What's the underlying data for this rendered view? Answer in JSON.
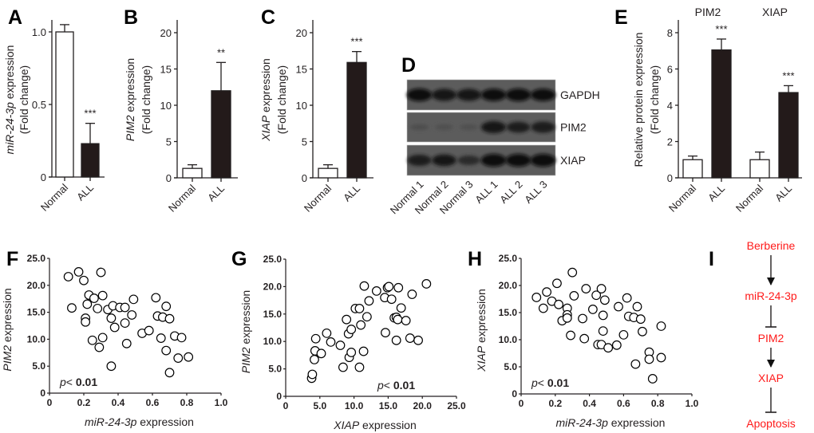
{
  "colors": {
    "bar_normal": "#ffffff",
    "bar_all": "#231a1a",
    "pathway_text": "#ff1a1a",
    "ink": "#231f20"
  },
  "chart_data": [
    {
      "panel": "A",
      "type": "bar",
      "ylabel_italic": "miR-24-3p",
      "ylabel_rest": " expression",
      "ylabel2": "(Fold change)",
      "yticks": [
        "0",
        "0.5",
        "1.0"
      ],
      "ytick_values": [
        0,
        0.5,
        1.0
      ],
      "ylim": [
        0,
        1.1
      ],
      "categories": [
        "Normal",
        "ALL"
      ],
      "values": [
        1.0,
        0.23
      ],
      "errors": [
        0.05,
        0.14
      ],
      "significance": [
        "",
        "***"
      ]
    },
    {
      "panel": "B",
      "type": "bar",
      "ylabel_italic": "PIM2",
      "ylabel_rest": " expression",
      "ylabel2": "(Fold change)",
      "yticks": [
        "0",
        "5",
        "10",
        "15",
        "20"
      ],
      "ytick_values": [
        0,
        5,
        10,
        15,
        20
      ],
      "ylim": [
        0,
        22
      ],
      "categories": [
        "Normal",
        "ALL"
      ],
      "values": [
        1.3,
        12.0
      ],
      "errors": [
        0.5,
        3.9
      ],
      "significance": [
        "",
        "**"
      ]
    },
    {
      "panel": "C",
      "type": "bar",
      "ylabel_italic": "XIAP",
      "ylabel_rest": " expression",
      "ylabel2": "(Fold change)",
      "yticks": [
        "0",
        "5",
        "10",
        "15",
        "20"
      ],
      "ytick_values": [
        0,
        5,
        10,
        15,
        20
      ],
      "ylim": [
        0,
        22
      ],
      "categories": [
        "Normal",
        "ALL"
      ],
      "values": [
        1.3,
        15.9
      ],
      "errors": [
        0.5,
        1.5
      ],
      "significance": [
        "",
        "***"
      ]
    },
    {
      "panel": "E",
      "type": "bar",
      "ylabel_italic": "",
      "ylabel_rest": "Relative protein expression",
      "ylabel2": "(Fold change)",
      "yticks": [
        "0",
        "2",
        "4",
        "6",
        "8"
      ],
      "ytick_values": [
        0,
        2,
        4,
        6,
        8
      ],
      "ylim": [
        0,
        8.8
      ],
      "groups": [
        "PIM2",
        "XIAP"
      ],
      "categories": [
        "Normal",
        "ALL",
        "Normal",
        "ALL"
      ],
      "values": [
        1.0,
        7.05,
        1.0,
        4.7
      ],
      "errors": [
        0.2,
        0.6,
        0.42,
        0.38
      ],
      "significance": [
        "",
        "***",
        "",
        "***"
      ]
    },
    {
      "panel": "F",
      "type": "scatter",
      "xlabel_italic": "miR-24-3p",
      "xlabel_rest": " expression",
      "ylabel_italic": "PIM2",
      "ylabel_rest": " expression",
      "xticks": [
        "0",
        "0.2",
        "0.4",
        "0.6",
        "0.8",
        "1.0"
      ],
      "xtick_values": [
        0,
        0.2,
        0.4,
        0.6,
        0.8,
        1.0
      ],
      "xlim": [
        0,
        1.0
      ],
      "yticks": [
        "0",
        "5.0",
        "10.0",
        "15.0",
        "20.0",
        "25.0"
      ],
      "ytick_values": [
        0,
        5,
        10,
        15,
        20,
        25
      ],
      "ylim": [
        0,
        25
      ],
      "p_prefix": "p",
      "p_op": "< ",
      "p_value": "0.01",
      "p_position": "bottom-left",
      "points": [
        [
          0.11,
          21.6
        ],
        [
          0.17,
          22.5
        ],
        [
          0.2,
          20.9
        ],
        [
          0.3,
          22.4
        ],
        [
          0.13,
          15.8
        ],
        [
          0.23,
          18.2
        ],
        [
          0.26,
          17.6
        ],
        [
          0.31,
          18.1
        ],
        [
          0.22,
          16.5
        ],
        [
          0.28,
          15.7
        ],
        [
          0.34,
          15.5
        ],
        [
          0.37,
          16.2
        ],
        [
          0.41,
          15.9
        ],
        [
          0.44,
          15.9
        ],
        [
          0.49,
          17.4
        ],
        [
          0.21,
          13.9
        ],
        [
          0.21,
          13.2
        ],
        [
          0.36,
          13.9
        ],
        [
          0.38,
          12.2
        ],
        [
          0.44,
          13.0
        ],
        [
          0.48,
          14.5
        ],
        [
          0.25,
          9.8
        ],
        [
          0.29,
          8.5
        ],
        [
          0.31,
          10.3
        ],
        [
          0.36,
          5.0
        ],
        [
          0.45,
          9.2
        ],
        [
          0.54,
          11.1
        ],
        [
          0.58,
          11.6
        ],
        [
          0.62,
          17.7
        ],
        [
          0.63,
          14.3
        ],
        [
          0.66,
          14.1
        ],
        [
          0.68,
          16.1
        ],
        [
          0.7,
          13.8
        ],
        [
          0.65,
          10.2
        ],
        [
          0.68,
          7.9
        ],
        [
          0.73,
          10.6
        ],
        [
          0.77,
          10.3
        ],
        [
          0.75,
          6.5
        ],
        [
          0.81,
          6.7
        ],
        [
          0.7,
          3.8
        ]
      ]
    },
    {
      "panel": "G",
      "type": "scatter",
      "xlabel_italic": "XIAP",
      "xlabel_rest": " expression",
      "ylabel_italic": "PIM2",
      "ylabel_rest": " expression",
      "xticks": [
        "0",
        "5.0",
        "10.0",
        "15.0",
        "20.0",
        "25.0"
      ],
      "xtick_values": [
        0,
        5,
        10,
        15,
        20,
        25
      ],
      "xlim": [
        0,
        25
      ],
      "yticks": [
        "0",
        "5.0",
        "10.0",
        "15.0",
        "20.0",
        "25.0"
      ],
      "ytick_values": [
        0,
        5,
        10,
        15,
        20,
        25
      ],
      "ylim": [
        0,
        25
      ],
      "p_prefix": "p",
      "p_op": "< ",
      "p_value": "0.01",
      "p_position": "bottom-right",
      "points": [
        [
          3.8,
          3.3
        ],
        [
          3.9,
          4.0
        ],
        [
          4.2,
          6.7
        ],
        [
          4.3,
          8.3
        ],
        [
          4.4,
          10.5
        ],
        [
          5.2,
          7.8
        ],
        [
          6.0,
          11.5
        ],
        [
          6.6,
          9.9
        ],
        [
          8.0,
          9.3
        ],
        [
          8.4,
          5.3
        ],
        [
          8.9,
          14.0
        ],
        [
          9.3,
          7.1
        ],
        [
          9.2,
          11.4
        ],
        [
          9.6,
          12.2
        ],
        [
          9.6,
          8.0
        ],
        [
          10.2,
          16.0
        ],
        [
          10.8,
          16.0
        ],
        [
          10.8,
          5.3
        ],
        [
          11.0,
          13.0
        ],
        [
          11.4,
          8.2
        ],
        [
          11.5,
          20.1
        ],
        [
          11.9,
          14.5
        ],
        [
          12.2,
          17.4
        ],
        [
          13.3,
          19.2
        ],
        [
          14.5,
          18.0
        ],
        [
          14.6,
          11.6
        ],
        [
          14.9,
          19.8
        ],
        [
          15.1,
          20.0
        ],
        [
          15.5,
          17.7
        ],
        [
          15.9,
          14.3
        ],
        [
          16.2,
          14.4
        ],
        [
          16.4,
          14.0
        ],
        [
          16.5,
          19.8
        ],
        [
          16.2,
          10.2
        ],
        [
          16.9,
          16.1
        ],
        [
          17.6,
          13.8
        ],
        [
          18.2,
          10.6
        ],
        [
          18.5,
          18.6
        ],
        [
          19.4,
          10.2
        ],
        [
          20.6,
          20.5
        ]
      ]
    },
    {
      "panel": "H",
      "type": "scatter",
      "xlabel_italic": "miR-24-3p",
      "xlabel_rest": " expression",
      "ylabel_italic": "XIAP",
      "ylabel_rest": " expression",
      "xticks": [
        "0",
        "0.2",
        "0.4",
        "0.6",
        "0.8",
        "1.0"
      ],
      "xtick_values": [
        0,
        0.2,
        0.4,
        0.6,
        0.8,
        1.0
      ],
      "xlim": [
        0,
        1.0
      ],
      "yticks": [
        "0",
        "5.0",
        "10.0",
        "15.0",
        "20.0",
        "25.0"
      ],
      "ytick_values": [
        0,
        5,
        10,
        15,
        20,
        25
      ],
      "ylim": [
        0,
        25
      ],
      "p_prefix": "p",
      "p_op": "< ",
      "p_value": "0.01",
      "p_position": "bottom-left",
      "points": [
        [
          0.09,
          17.8
        ],
        [
          0.13,
          15.8
        ],
        [
          0.15,
          18.8
        ],
        [
          0.18,
          17.1
        ],
        [
          0.21,
          20.4
        ],
        [
          0.22,
          16.5
        ],
        [
          0.24,
          13.5
        ],
        [
          0.27,
          15.8
        ],
        [
          0.27,
          14.6
        ],
        [
          0.27,
          14.0
        ],
        [
          0.29,
          10.8
        ],
        [
          0.3,
          22.4
        ],
        [
          0.31,
          18.1
        ],
        [
          0.36,
          13.9
        ],
        [
          0.37,
          10.2
        ],
        [
          0.38,
          19.4
        ],
        [
          0.42,
          15.6
        ],
        [
          0.44,
          18.2
        ],
        [
          0.45,
          9.1
        ],
        [
          0.47,
          9.1
        ],
        [
          0.47,
          19.4
        ],
        [
          0.48,
          14.5
        ],
        [
          0.48,
          11.6
        ],
        [
          0.49,
          17.3
        ],
        [
          0.51,
          8.5
        ],
        [
          0.56,
          9.0
        ],
        [
          0.57,
          16.1
        ],
        [
          0.6,
          10.9
        ],
        [
          0.62,
          17.7
        ],
        [
          0.63,
          14.3
        ],
        [
          0.66,
          14.1
        ],
        [
          0.68,
          16.1
        ],
        [
          0.67,
          5.5
        ],
        [
          0.7,
          13.8
        ],
        [
          0.71,
          11.5
        ],
        [
          0.75,
          7.7
        ],
        [
          0.75,
          6.4
        ],
        [
          0.77,
          2.8
        ],
        [
          0.82,
          12.5
        ],
        [
          0.82,
          6.7
        ]
      ]
    }
  ],
  "blot": {
    "panel": "D",
    "lanes": [
      "Normal 1",
      "Normal 2",
      "Normal 3",
      "ALL 1",
      "ALL 2",
      "ALL 3"
    ],
    "rows": [
      {
        "label": "GAPDH",
        "band_intensity": [
          1.0,
          0.9,
          0.9,
          0.95,
          1.0,
          0.95
        ]
      },
      {
        "label": "PIM2",
        "band_intensity": [
          0.15,
          0.12,
          0.12,
          0.9,
          0.75,
          0.8
        ]
      },
      {
        "label": "XIAP",
        "band_intensity": [
          0.8,
          0.85,
          0.6,
          1.0,
          1.0,
          1.0
        ]
      }
    ]
  },
  "pathway": {
    "panel": "I",
    "nodes": [
      "Berberine",
      "miR-24-3p",
      "PIM2",
      "XIAP",
      "Apoptosis"
    ],
    "edges": [
      "activates",
      "inhibits",
      "activates",
      "inhibits"
    ]
  }
}
